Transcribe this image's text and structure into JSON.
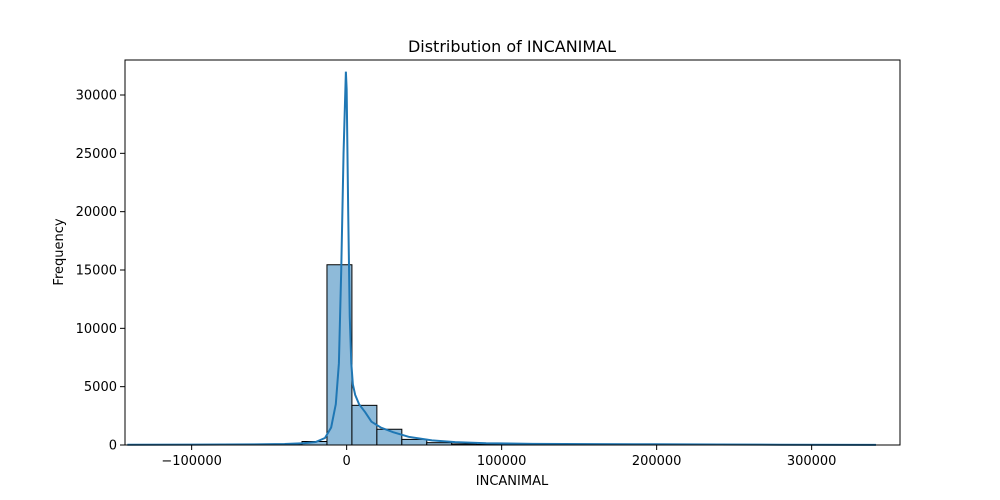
{
  "chart_data": {
    "type": "bar",
    "title": "Distribution of INCANIMAL",
    "xlabel": "INCANIMAL",
    "ylabel": "Frequency",
    "xlim": [
      -143000,
      357000
    ],
    "ylim": [
      0,
      33000
    ],
    "xticks": [
      -100000,
      0,
      100000,
      200000,
      300000
    ],
    "xtick_labels": [
      "−100000",
      "0",
      "100000",
      "200000",
      "300000"
    ],
    "yticks": [
      0,
      5000,
      10000,
      15000,
      20000,
      25000,
      30000
    ],
    "ytick_labels": [
      "0",
      "5000",
      "10000",
      "15000",
      "20000",
      "25000",
      "30000"
    ],
    "bins": [
      {
        "x0": -141500,
        "x1": -125400,
        "count": 3
      },
      {
        "x0": -125400,
        "x1": -109300,
        "count": 2
      },
      {
        "x0": -109300,
        "x1": -93200,
        "count": 4
      },
      {
        "x0": -93200,
        "x1": -77100,
        "count": 6
      },
      {
        "x0": -77100,
        "x1": -61000,
        "count": 10
      },
      {
        "x0": -61000,
        "x1": -44900,
        "count": 25
      },
      {
        "x0": -44900,
        "x1": -28800,
        "count": 60
      },
      {
        "x0": -28800,
        "x1": -12700,
        "count": 300
      },
      {
        "x0": -12700,
        "x1": 3400,
        "count": 15450
      },
      {
        "x0": 3400,
        "x1": 19500,
        "count": 3400
      },
      {
        "x0": 19500,
        "x1": 35600,
        "count": 1350
      },
      {
        "x0": 35600,
        "x1": 51700,
        "count": 480
      },
      {
        "x0": 51700,
        "x1": 67800,
        "count": 200
      },
      {
        "x0": 67800,
        "x1": 83900,
        "count": 90
      },
      {
        "x0": 83900,
        "x1": 100000,
        "count": 50
      },
      {
        "x0": 100000,
        "x1": 116100,
        "count": 30
      },
      {
        "x0": 116100,
        "x1": 132200,
        "count": 20
      },
      {
        "x0": 132200,
        "x1": 148300,
        "count": 12
      },
      {
        "x0": 148300,
        "x1": 164400,
        "count": 8
      },
      {
        "x0": 164400,
        "x1": 180500,
        "count": 6
      },
      {
        "x0": 180500,
        "x1": 196600,
        "count": 5
      },
      {
        "x0": 196600,
        "x1": 212700,
        "count": 4
      },
      {
        "x0": 212700,
        "x1": 228800,
        "count": 3
      },
      {
        "x0": 228800,
        "x1": 244900,
        "count": 3
      },
      {
        "x0": 244900,
        "x1": 261000,
        "count": 2
      },
      {
        "x0": 261000,
        "x1": 277100,
        "count": 2
      },
      {
        "x0": 277100,
        "x1": 293200,
        "count": 1
      },
      {
        "x0": 293200,
        "x1": 309300,
        "count": 1
      },
      {
        "x0": 309300,
        "x1": 325400,
        "count": 1
      },
      {
        "x0": 325400,
        "x1": 341500,
        "count": 1
      }
    ],
    "kde": {
      "x": [
        -141500,
        -100000,
        -60000,
        -40000,
        -28000,
        -20000,
        -14000,
        -10000,
        -7000,
        -5000,
        -3500,
        -2000,
        -500,
        0,
        1000,
        2000,
        3000,
        4000,
        5500,
        8000,
        12000,
        16000,
        22000,
        30000,
        40000,
        55000,
        70000,
        90000,
        120000,
        160000,
        200000,
        240000,
        280000,
        341500
      ],
      "y": [
        20,
        30,
        50,
        90,
        150,
        250,
        600,
        1500,
        3500,
        7000,
        15000,
        25000,
        32000,
        30500,
        20000,
        11000,
        7000,
        5200,
        4300,
        3500,
        2800,
        2000,
        1500,
        1100,
        700,
        400,
        250,
        150,
        100,
        70,
        60,
        40,
        25,
        15
      ]
    },
    "bar_color": "#8ebad9",
    "bar_edge_color": "#000000",
    "line_color": "#1f77b4",
    "grid": false,
    "legend": "none"
  }
}
